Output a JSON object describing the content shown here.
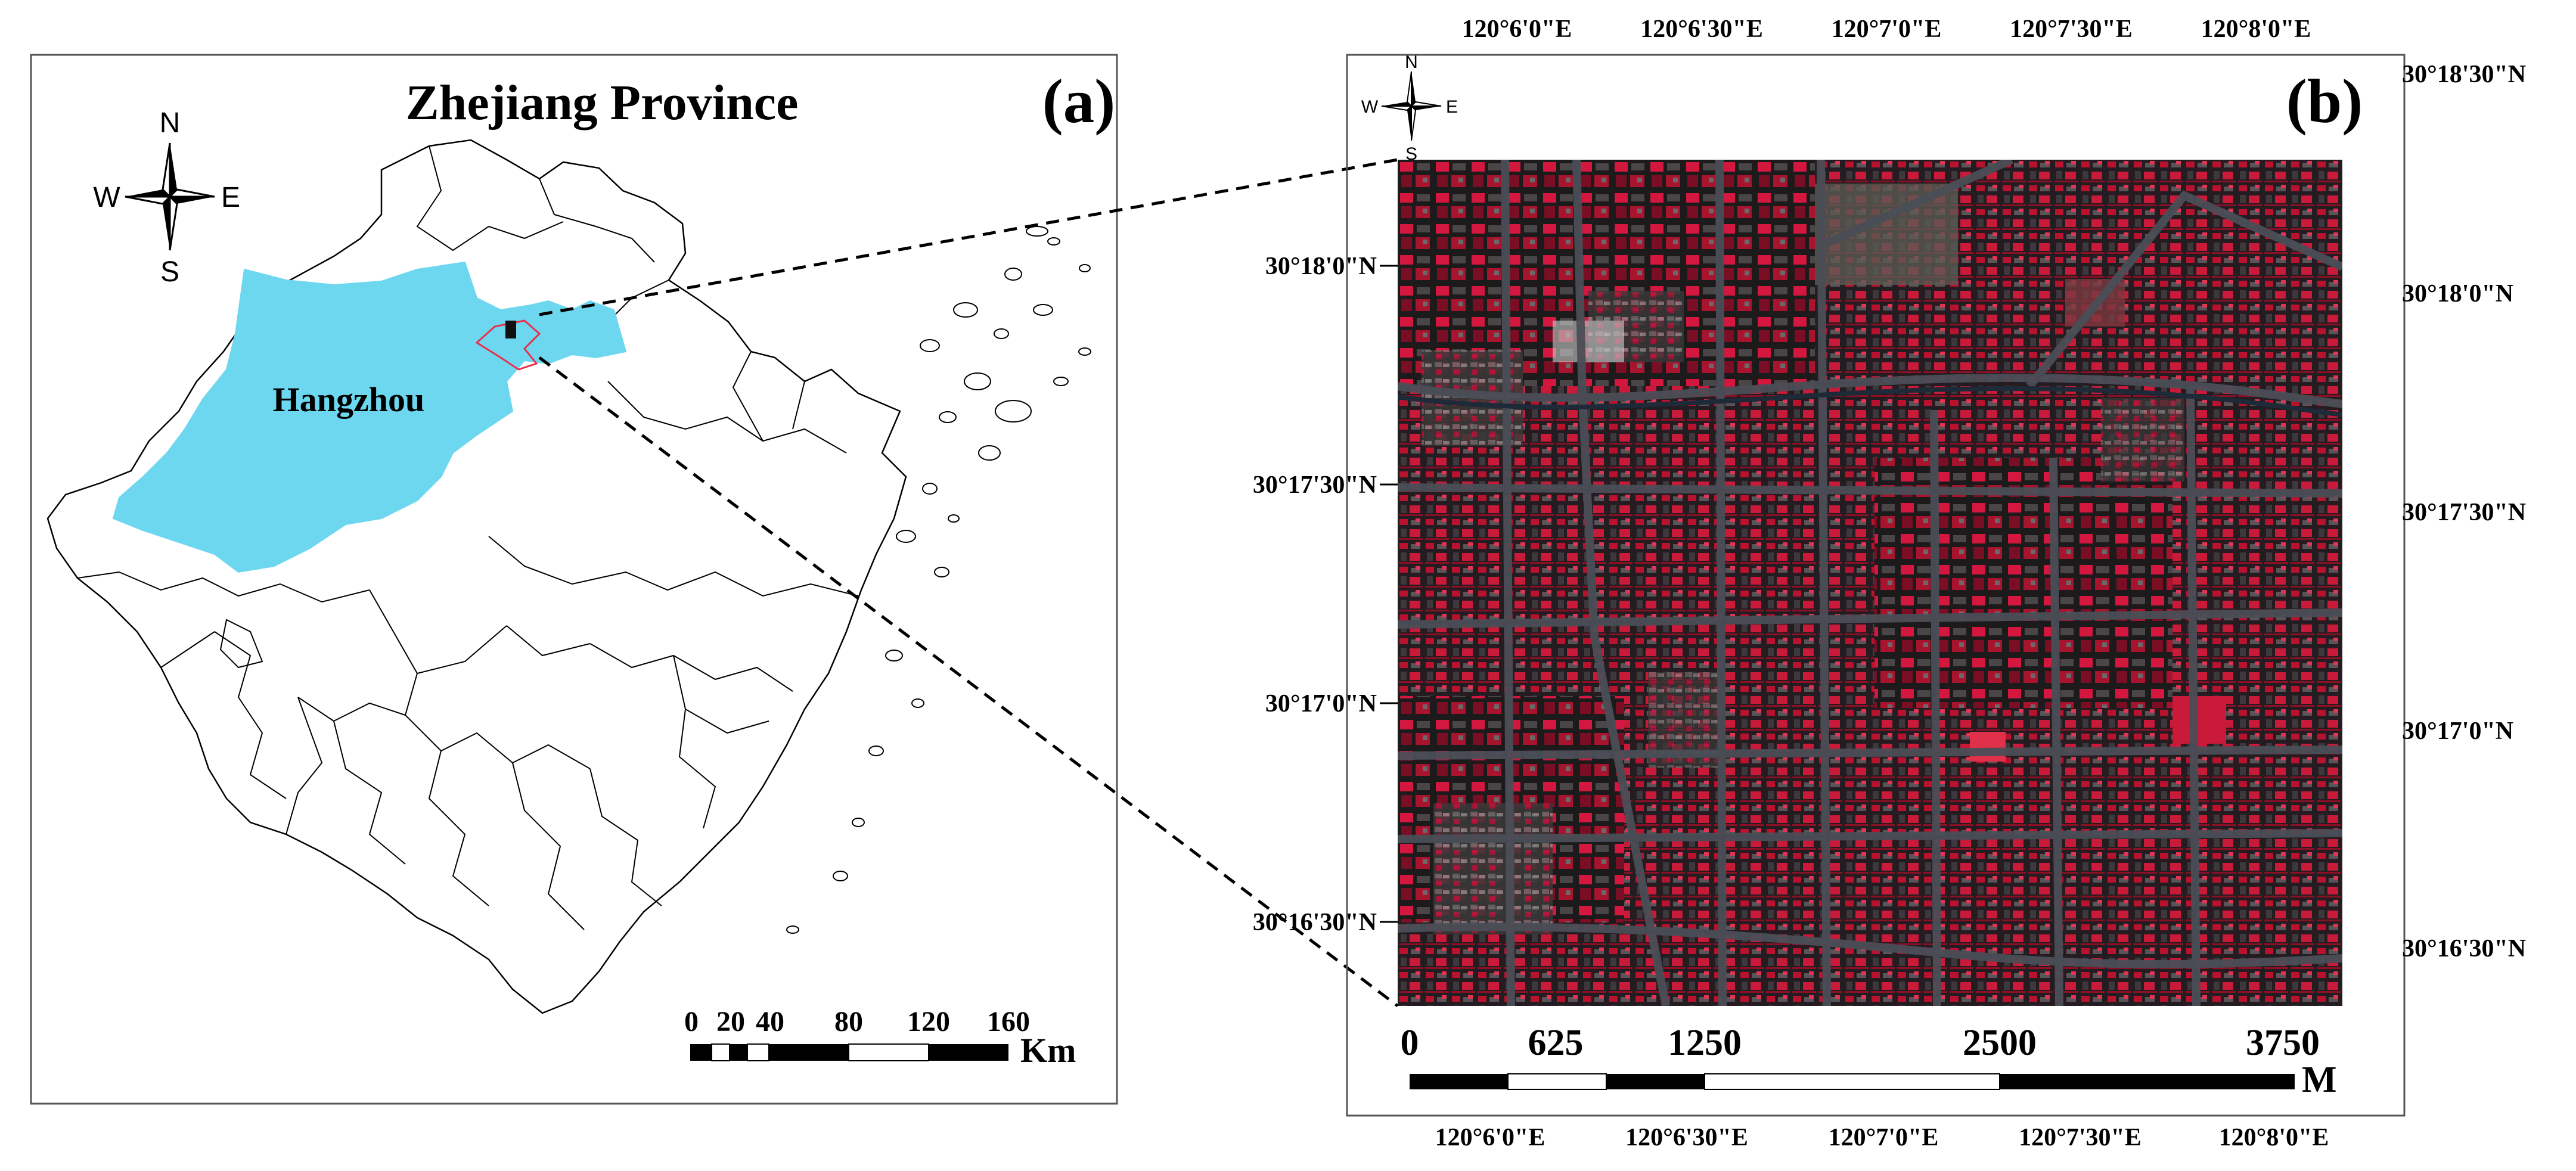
{
  "panel_a": {
    "title": "Zhejiang Province",
    "label": "(a)",
    "city_label": "Hangzhou",
    "compass": {
      "n": "N",
      "s": "S",
      "e": "E",
      "w": "W"
    },
    "scale": {
      "ticks": [
        "0",
        "20",
        "40",
        "80",
        "120",
        "160"
      ],
      "unit": "Km"
    },
    "colors": {
      "hangzhou_fill": "#6dd7f0",
      "study_area_outline": "#e8314a"
    }
  },
  "panel_b": {
    "label": "(b)",
    "compass": {
      "n": "N",
      "s": "S",
      "e": "E",
      "w": "W"
    },
    "lon_labels": [
      "120°6'0\"E",
      "120°6'30\"E",
      "120°7'0\"E",
      "120°7'30\"E",
      "120°8'0\"E"
    ],
    "lat_labels_left": [
      "30°18'0\"N",
      "30°17'30\"N",
      "30°17'0\"N",
      "30°16'30\"N"
    ],
    "lat_labels_right": [
      "30°18'30\"N",
      "30°18'0\"N",
      "30°17'30\"N",
      "30°17'0\"N",
      "30°16'30\"N"
    ],
    "scale": {
      "ticks": [
        "0",
        "625",
        "1250",
        "2500",
        "3750"
      ],
      "unit": "M"
    },
    "colors": {
      "vegetation": "#d0163a",
      "urban": "#2a2a2e"
    }
  }
}
